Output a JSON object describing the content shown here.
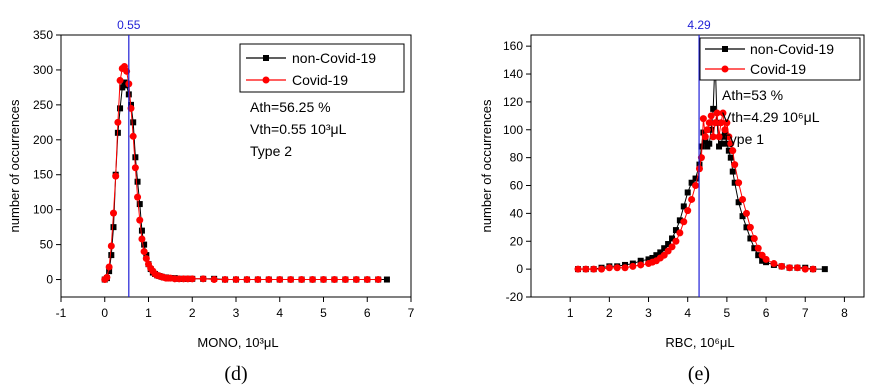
{
  "chart_data": [
    {
      "type": "line",
      "panel": "d",
      "xlabel": "MONO, 10³μL",
      "ylabel": "number of occurrences",
      "xlim": [
        -1,
        7
      ],
      "ylim": [
        -25,
        350
      ],
      "xticks": [
        "-1",
        "0",
        "1",
        "2",
        "3",
        "4",
        "5",
        "6",
        "7"
      ],
      "yticks": [
        "0",
        "50",
        "100",
        "150",
        "200",
        "250",
        "300",
        "350"
      ],
      "grid": false,
      "legend": {
        "placement": "top-right",
        "entries": [
          "non-Covid-19",
          "Covid-19"
        ]
      },
      "annotations": [
        "Ath=56.25 %",
        "Vth=0.55 10³μL",
        "Type 2"
      ],
      "threshold": {
        "value": 0.55,
        "label": "0.55"
      },
      "series": [
        {
          "name": "non-Covid-19",
          "color": "#000000",
          "marker": "square",
          "x": [
            0.0,
            0.05,
            0.1,
            0.15,
            0.2,
            0.25,
            0.3,
            0.35,
            0.4,
            0.45,
            0.5,
            0.55,
            0.6,
            0.65,
            0.7,
            0.75,
            0.8,
            0.85,
            0.9,
            0.95,
            1.0,
            1.05,
            1.1,
            1.15,
            1.2,
            1.25,
            1.3,
            1.35,
            1.4,
            1.45,
            1.5,
            1.6,
            1.7,
            1.8,
            1.9,
            2.0,
            2.25,
            2.5,
            2.75,
            3.0,
            3.25,
            3.5,
            3.75,
            4.0,
            4.25,
            4.5,
            4.75,
            5.0,
            5.25,
            5.5,
            5.75,
            6.0,
            6.25,
            6.45
          ],
          "y": [
            0,
            2,
            12,
            35,
            75,
            150,
            210,
            245,
            275,
            282,
            278,
            265,
            250,
            225,
            175,
            140,
            108,
            70,
            50,
            35,
            22,
            15,
            10,
            8,
            6,
            5,
            4,
            3,
            3,
            2,
            2,
            2,
            1,
            1,
            1,
            1,
            1,
            1,
            0,
            0,
            0,
            0,
            0,
            0,
            0,
            0,
            0,
            0,
            0,
            0,
            0,
            0,
            0,
            0
          ]
        },
        {
          "name": "Covid-19",
          "color": "#ff0000",
          "marker": "circle",
          "x": [
            0.0,
            0.05,
            0.1,
            0.15,
            0.2,
            0.25,
            0.3,
            0.35,
            0.4,
            0.45,
            0.5,
            0.55,
            0.6,
            0.65,
            0.7,
            0.75,
            0.8,
            0.85,
            0.9,
            0.95,
            1.0,
            1.05,
            1.1,
            1.15,
            1.2,
            1.25,
            1.3,
            1.35,
            1.4,
            1.45,
            1.5,
            1.6,
            1.7,
            1.8,
            1.9,
            2.0,
            2.25,
            2.5,
            2.75,
            3.0,
            3.25,
            3.5,
            3.75,
            4.0,
            4.25,
            4.5,
            4.75,
            5.0,
            5.25,
            5.5,
            5.75,
            6.0,
            6.25
          ],
          "y": [
            0,
            3,
            18,
            48,
            95,
            148,
            225,
            285,
            302,
            305,
            298,
            280,
            245,
            205,
            160,
            118,
            85,
            58,
            40,
            30,
            22,
            16,
            12,
            8,
            6,
            5,
            4,
            3,
            2,
            2,
            2,
            1,
            1,
            1,
            1,
            1,
            1,
            0,
            0,
            0,
            0,
            0,
            0,
            0,
            0,
            0,
            0,
            0,
            0,
            0,
            0,
            0,
            0
          ]
        }
      ]
    },
    {
      "type": "line",
      "panel": "e",
      "xlabel": "RBC, 10⁶μL",
      "ylabel": "number of occurrences",
      "xlim": [
        0,
        8.5
      ],
      "ylim": [
        -20,
        168
      ],
      "xticks": [
        "1",
        "2",
        "3",
        "4",
        "5",
        "6",
        "7",
        "8"
      ],
      "yticks": [
        "-20",
        "0",
        "20",
        "40",
        "60",
        "80",
        "100",
        "120",
        "140",
        "160"
      ],
      "grid": false,
      "legend": {
        "placement": "top-right",
        "entries": [
          "non-Covid-19",
          "Covid-19"
        ]
      },
      "annotations": [
        "Ath=53 %",
        "Vth=4.29 10⁶μL",
        "Type 1"
      ],
      "threshold": {
        "value": 4.29,
        "label": "4.29"
      },
      "series": [
        {
          "name": "non-Covid-19",
          "color": "#000000",
          "marker": "square",
          "x": [
            1.2,
            1.4,
            1.6,
            1.8,
            2.0,
            2.2,
            2.4,
            2.6,
            2.8,
            3.0,
            3.1,
            3.2,
            3.3,
            3.4,
            3.5,
            3.6,
            3.7,
            3.8,
            3.9,
            4.0,
            4.1,
            4.2,
            4.3,
            4.35,
            4.4,
            4.45,
            4.5,
            4.55,
            4.6,
            4.65,
            4.7,
            4.75,
            4.8,
            4.85,
            4.9,
            4.95,
            5.0,
            5.05,
            5.1,
            5.15,
            5.2,
            5.3,
            5.4,
            5.5,
            5.6,
            5.7,
            5.8,
            5.9,
            6.0,
            6.2,
            6.4,
            6.6,
            6.8,
            7.0,
            7.2,
            7.5
          ],
          "y": [
            0,
            0,
            0,
            1,
            2,
            2,
            3,
            4,
            6,
            7,
            8,
            10,
            12,
            15,
            18,
            22,
            28,
            35,
            45,
            55,
            62,
            65,
            75,
            88,
            98,
            92,
            88,
            90,
            100,
            115,
            152,
            105,
            88,
            90,
            95,
            98,
            90,
            85,
            80,
            70,
            62,
            48,
            38,
            30,
            22,
            15,
            10,
            6,
            5,
            3,
            2,
            1,
            1,
            1,
            0,
            0
          ]
        },
        {
          "name": "Covid-19",
          "color": "#ff0000",
          "marker": "circle",
          "x": [
            1.2,
            1.4,
            1.6,
            1.8,
            2.0,
            2.2,
            2.4,
            2.6,
            2.8,
            3.0,
            3.1,
            3.2,
            3.3,
            3.4,
            3.5,
            3.6,
            3.7,
            3.8,
            3.9,
            4.0,
            4.1,
            4.2,
            4.3,
            4.35,
            4.4,
            4.45,
            4.5,
            4.55,
            4.6,
            4.65,
            4.7,
            4.75,
            4.8,
            4.85,
            4.9,
            4.95,
            5.0,
            5.05,
            5.1,
            5.15,
            5.2,
            5.3,
            5.4,
            5.5,
            5.6,
            5.7,
            5.8,
            5.9,
            6.0,
            6.2,
            6.4,
            6.6,
            6.8,
            7.0,
            7.2
          ],
          "y": [
            0,
            0,
            0,
            0,
            1,
            1,
            1,
            2,
            3,
            4,
            5,
            6,
            8,
            10,
            13,
            16,
            20,
            26,
            34,
            42,
            50,
            60,
            72,
            80,
            108,
            95,
            100,
            105,
            110,
            95,
            105,
            112,
            95,
            105,
            112,
            100,
            105,
            95,
            90,
            85,
            75,
            62,
            50,
            40,
            30,
            22,
            15,
            10,
            7,
            4,
            2,
            1,
            1,
            0,
            0
          ]
        }
      ]
    }
  ],
  "captions": [
    "(d)",
    "(e)"
  ]
}
